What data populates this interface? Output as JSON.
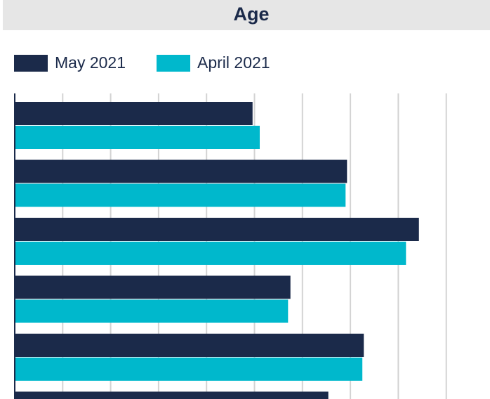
{
  "chart_data": {
    "type": "hbar",
    "title": "Age",
    "categories": [
      null,
      null,
      null,
      null,
      null,
      null
    ],
    "series": [
      {
        "name": "May 2021",
        "color": "#1b2a4a",
        "values": [
          4.96,
          6.93,
          8.43,
          5.75,
          7.28,
          6.54
        ]
      },
      {
        "name": "April 2021",
        "color": "#00b8cc",
        "values": [
          5.11,
          6.9,
          8.16,
          5.7,
          7.25,
          null
        ]
      }
    ],
    "xlim": [
      0,
      10
    ],
    "xticks": [
      0,
      1,
      2,
      3,
      4,
      5,
      6,
      7,
      8,
      9
    ],
    "grid": true,
    "legend": "top-left"
  }
}
